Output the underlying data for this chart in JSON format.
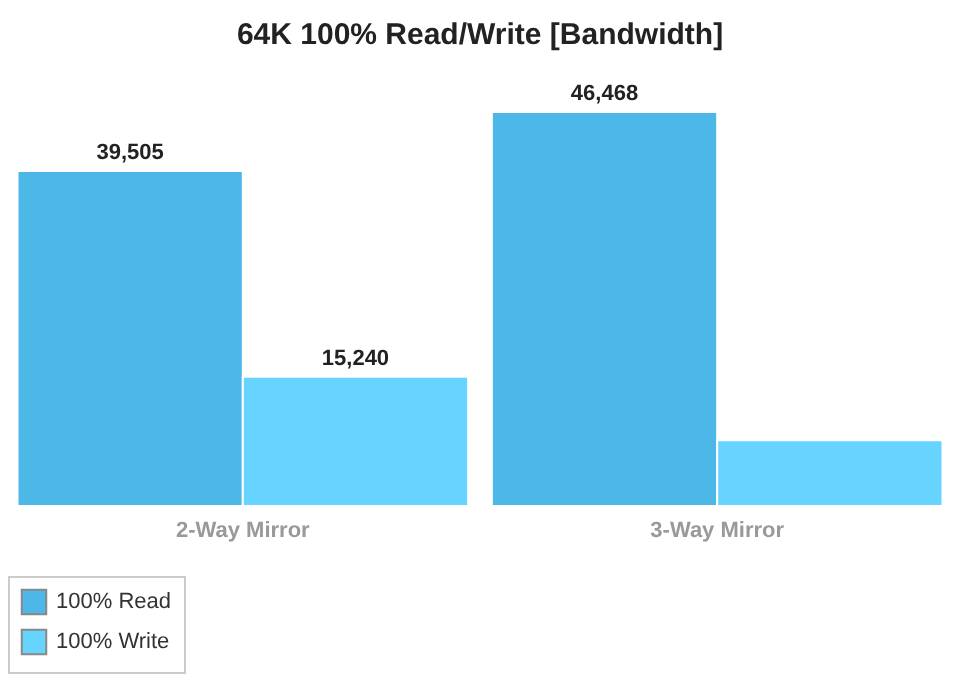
{
  "chart_data": {
    "type": "bar",
    "title": "64K 100% Read/Write [Bandwidth]",
    "categories": [
      "2-Way Mirror",
      "3-Way Mirror"
    ],
    "series": [
      {
        "name": "100% Read",
        "color": "#4db8e8",
        "values": [
          39505,
          46468
        ],
        "value_labels": [
          "39,505",
          "46,468"
        ]
      },
      {
        "name": "100% Write",
        "color": "#66d4ff",
        "values": [
          15240,
          7740
        ],
        "value_labels": [
          "15,240",
          null
        ]
      }
    ],
    "legend": "bottom"
  }
}
